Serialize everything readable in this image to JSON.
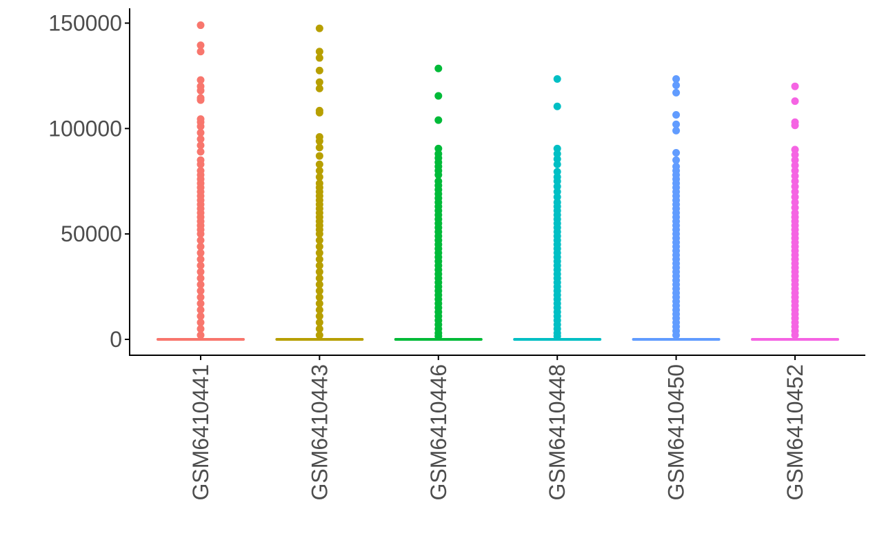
{
  "chart_data": {
    "type": "box",
    "title": "",
    "xlabel": "",
    "ylabel": "",
    "ylim": [
      -7000,
      155000
    ],
    "y_ticks": [
      {
        "value": 0,
        "label": "0"
      },
      {
        "value": 50000,
        "label": "50000"
      },
      {
        "value": 100000,
        "label": "100000"
      },
      {
        "value": 150000,
        "label": "150000"
      }
    ],
    "grid": false,
    "legend": "none",
    "categories": [
      "GSM6410441",
      "GSM6410443",
      "GSM6410446",
      "GSM6410448",
      "GSM6410450",
      "GSM6410452"
    ],
    "series": [
      {
        "category": "GSM6410441",
        "color": "#F8766D",
        "median": 0,
        "q1": 0,
        "q3": 0,
        "outliers": [
          149000,
          139500,
          136500,
          123000,
          120000,
          118000,
          114500,
          113500,
          104500,
          103000,
          101000,
          98000,
          95000,
          92000,
          89000,
          85000,
          83000,
          80000,
          78000,
          76000,
          74000,
          72000,
          70000,
          68000,
          66000,
          64000,
          62000,
          60000,
          58000,
          56000,
          54000,
          52000,
          50000,
          47000,
          44000,
          41000,
          38000,
          35000,
          32000,
          29000,
          26000,
          23000,
          20000,
          17000,
          14000,
          11000,
          8000,
          5000,
          2000
        ]
      },
      {
        "category": "GSM6410443",
        "color": "#B79F00",
        "median": 0,
        "q1": 0,
        "q3": 0,
        "outliers": [
          147500,
          136500,
          133500,
          127500,
          122000,
          119000,
          108500,
          107500,
          96000,
          94000,
          91000,
          87000,
          83000,
          80000,
          77000,
          74000,
          72000,
          70000,
          68000,
          66000,
          64000,
          62000,
          60000,
          58000,
          56000,
          54000,
          52000,
          50000,
          47000,
          44000,
          41000,
          38000,
          35000,
          32000,
          29000,
          26000,
          23000,
          20000,
          17000,
          14000,
          11000,
          8000,
          5000,
          2000
        ]
      },
      {
        "category": "GSM6410446",
        "color": "#00BA38",
        "median": 0,
        "q1": 0,
        "q3": 0,
        "outliers": [
          128500,
          115500,
          104000,
          90500,
          88000,
          86000,
          84000,
          82000,
          80000,
          78000,
          75000,
          73000,
          71000,
          69000,
          67000,
          65000,
          63000,
          61000,
          59000,
          57000,
          55000,
          53000,
          51000,
          49000,
          47000,
          45000,
          43000,
          41000,
          39000,
          37000,
          35000,
          33000,
          31000,
          29000,
          27000,
          25000,
          23000,
          21000,
          19000,
          17000,
          15000,
          13000,
          11000,
          9000,
          7000,
          5000,
          3000,
          1500
        ]
      },
      {
        "category": "GSM6410448",
        "color": "#00BFC4",
        "median": 0,
        "q1": 0,
        "q3": 0,
        "outliers": [
          123500,
          110500,
          90500,
          88000,
          85500,
          83000,
          79500,
          77000,
          75000,
          72500,
          70000,
          67500,
          65000,
          63000,
          61000,
          59000,
          57000,
          55000,
          53000,
          51000,
          49000,
          47000,
          45000,
          43000,
          41000,
          39000,
          37000,
          35000,
          33000,
          31000,
          29000,
          27000,
          25000,
          23000,
          21000,
          19000,
          17000,
          15000,
          13000,
          11000,
          9000,
          7000,
          5000,
          3000,
          1500
        ]
      },
      {
        "category": "GSM6410450",
        "color": "#619CFF",
        "median": 0,
        "q1": 0,
        "q3": 0,
        "outliers": [
          123500,
          120500,
          117000,
          106500,
          102000,
          99000,
          88500,
          85000,
          82000,
          80000,
          78000,
          76000,
          74000,
          72000,
          70000,
          68000,
          66000,
          64000,
          62000,
          60000,
          58000,
          56000,
          54000,
          52000,
          50000,
          48000,
          46000,
          44000,
          42000,
          40000,
          38000,
          36000,
          34000,
          32000,
          30000,
          28000,
          26000,
          24000,
          22000,
          20000,
          18000,
          16000,
          14000,
          12000,
          10000,
          8000,
          6000,
          4000,
          2000
        ]
      },
      {
        "category": "GSM6410452",
        "color": "#F564E3",
        "median": 0,
        "q1": 0,
        "q3": 0,
        "outliers": [
          120000,
          113000,
          103000,
          101500,
          90000,
          87500,
          85000,
          82500,
          80000,
          77500,
          75000,
          72500,
          70000,
          67500,
          65000,
          62500,
          60000,
          58000,
          56000,
          54000,
          52000,
          50000,
          48000,
          46000,
          44000,
          42000,
          40000,
          38000,
          36000,
          34000,
          32000,
          30000,
          28000,
          26000,
          24000,
          22000,
          20000,
          18000,
          16000,
          14000,
          12000,
          10000,
          8000,
          6000,
          4000,
          2000
        ]
      }
    ]
  }
}
